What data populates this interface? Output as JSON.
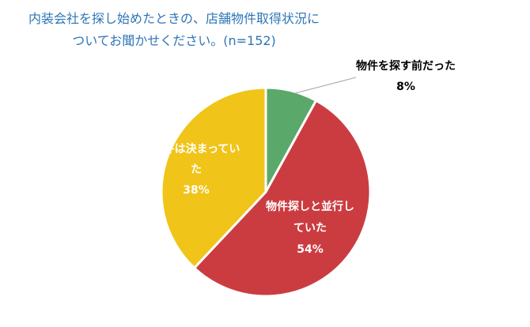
{
  "chart_data": {
    "type": "pie",
    "title_line1": "内装会社を探し始めたときの、店舗物件取得状況に",
    "title_line2": "ついてお聞かせください。(n=152)",
    "slices": [
      {
        "label_lines": [
          "物件を探す前だった"
        ],
        "pct_text": "8%",
        "value": 8,
        "color": "#5ba86b",
        "label_color": "#000000"
      },
      {
        "label_lines": [
          "物件探しと並行し",
          "ていた"
        ],
        "pct_text": "54%",
        "value": 54,
        "color": "#cb3c41",
        "label_color": "#ffffff"
      },
      {
        "label_lines": [
          "物件は決まってい",
          "た"
        ],
        "pct_text": "38%",
        "value": 38,
        "color": "#f0c419",
        "label_color": "#ffffff"
      }
    ]
  }
}
